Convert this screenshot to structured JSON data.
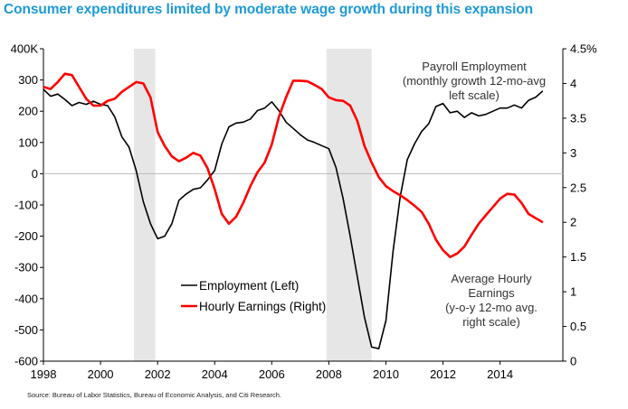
{
  "title": "Consumer expenditures limited by moderate wage growth during this expansion",
  "source": "Source: Bureau of Labor Statistics,  Bureau of  Economic Analysis, and Citi Research.",
  "colors": {
    "title": "#1f9ad6",
    "employment": "#000000",
    "earnings": "#ff0000",
    "recession": "#e6e6e6"
  },
  "chart_data": {
    "type": "line",
    "title": "Consumer expenditures limited by moderate wage growth during this expansion",
    "x_ticks": [
      "1998",
      "2000",
      "2002",
      "2004",
      "2006",
      "2008",
      "2010",
      "2012",
      "2014"
    ],
    "x_range": [
      1998,
      2016.2
    ],
    "y_left": {
      "range": [
        -600,
        400
      ],
      "ticks": [
        "400K",
        "300",
        "200",
        "100",
        "0",
        "-100",
        "-200",
        "-300",
        "-400",
        "-500",
        "-600"
      ]
    },
    "y_right": {
      "range": [
        0,
        4.5
      ],
      "ticks": [
        "4.5%",
        "4",
        "3.5",
        "3",
        "2.5",
        "2",
        "1.5",
        "1",
        "0.5",
        "0"
      ]
    },
    "recessions": [
      [
        2001.17,
        2001.92
      ],
      [
        2007.92,
        2009.5
      ]
    ],
    "legend": [
      {
        "label": "Employment (Left)",
        "key": "employment"
      },
      {
        "label": "Hourly Earnings (Right)",
        "key": "earnings"
      }
    ],
    "annotations": {
      "employment": [
        "Payroll Employment",
        "(monthly growth 12-mo-avg",
        "left scale)"
      ],
      "earnings": [
        "Average Hourly",
        "Earnings",
        "(y-o-y 12-mo avg.",
        "right scale)"
      ]
    },
    "series": [
      {
        "name": "Employment (Left)",
        "axis": "left",
        "x": [
          1998.0,
          1998.25,
          1998.5,
          1998.75,
          1999.0,
          1999.25,
          1999.5,
          1999.75,
          2000.0,
          2000.25,
          2000.5,
          2000.75,
          2001.0,
          2001.25,
          2001.5,
          2001.75,
          2002.0,
          2002.25,
          2002.5,
          2002.75,
          2003.0,
          2003.25,
          2003.5,
          2003.75,
          2004.0,
          2004.25,
          2004.5,
          2004.75,
          2005.0,
          2005.25,
          2005.5,
          2005.75,
          2006.0,
          2006.25,
          2006.5,
          2006.75,
          2007.0,
          2007.25,
          2007.5,
          2007.75,
          2008.0,
          2008.25,
          2008.5,
          2008.75,
          2009.0,
          2009.25,
          2009.5,
          2009.75,
          2010.0,
          2010.25,
          2010.5,
          2010.75,
          2011.0,
          2011.25,
          2011.5,
          2011.75,
          2012.0,
          2012.25,
          2012.5,
          2012.75,
          2013.0,
          2013.25,
          2013.5,
          2013.75,
          2014.0,
          2014.25,
          2014.5,
          2014.75,
          2015.0,
          2015.25,
          2015.5
        ],
        "values": [
          270,
          248,
          255,
          238,
          218,
          228,
          222,
          232,
          222,
          218,
          182,
          118,
          85,
          10,
          -90,
          -160,
          -208,
          -200,
          -160,
          -85,
          -65,
          -50,
          -45,
          -20,
          10,
          95,
          150,
          162,
          165,
          175,
          202,
          210,
          230,
          202,
          165,
          145,
          125,
          108,
          100,
          90,
          80,
          20,
          -80,
          -200,
          -330,
          -460,
          -555,
          -560,
          -470,
          -250,
          -75,
          45,
          95,
          135,
          160,
          215,
          225,
          195,
          200,
          180,
          195,
          185,
          190,
          200,
          210,
          210,
          220,
          210,
          235,
          245,
          265
        ]
      },
      {
        "name": "Hourly Earnings (Right)",
        "axis": "right",
        "x": [
          1998.0,
          1998.25,
          1998.5,
          1998.75,
          1999.0,
          1999.25,
          1999.5,
          1999.75,
          2000.0,
          2000.25,
          2000.5,
          2000.75,
          2001.0,
          2001.25,
          2001.5,
          2001.75,
          2002.0,
          2002.25,
          2002.5,
          2002.75,
          2003.0,
          2003.25,
          2003.5,
          2003.75,
          2004.0,
          2004.25,
          2004.5,
          2004.75,
          2005.0,
          2005.25,
          2005.5,
          2005.75,
          2006.0,
          2006.25,
          2006.5,
          2006.75,
          2007.0,
          2007.25,
          2007.5,
          2007.75,
          2008.0,
          2008.25,
          2008.5,
          2008.75,
          2009.0,
          2009.25,
          2009.5,
          2009.75,
          2010.0,
          2010.25,
          2010.5,
          2010.75,
          2011.0,
          2011.25,
          2011.5,
          2011.75,
          2012.0,
          2012.25,
          2012.5,
          2012.75,
          2013.0,
          2013.25,
          2013.5,
          2013.75,
          2014.0,
          2014.25,
          2014.5,
          2014.75,
          2015.0,
          2015.25,
          2015.5
        ],
        "values": [
          3.95,
          3.92,
          4.02,
          4.14,
          4.12,
          3.95,
          3.78,
          3.68,
          3.68,
          3.75,
          3.78,
          3.88,
          3.95,
          4.02,
          4.0,
          3.8,
          3.3,
          3.1,
          2.95,
          2.88,
          2.93,
          3.0,
          2.96,
          2.78,
          2.48,
          2.12,
          1.98,
          2.08,
          2.28,
          2.52,
          2.72,
          2.86,
          3.12,
          3.52,
          3.8,
          4.04,
          4.04,
          4.03,
          3.98,
          3.92,
          3.8,
          3.76,
          3.75,
          3.68,
          3.46,
          3.1,
          2.86,
          2.65,
          2.52,
          2.45,
          2.39,
          2.32,
          2.24,
          2.15,
          1.98,
          1.75,
          1.6,
          1.5,
          1.55,
          1.65,
          1.82,
          1.98,
          2.1,
          2.22,
          2.34,
          2.41,
          2.4,
          2.28,
          2.12,
          2.06,
          2.0
        ]
      }
    ]
  }
}
